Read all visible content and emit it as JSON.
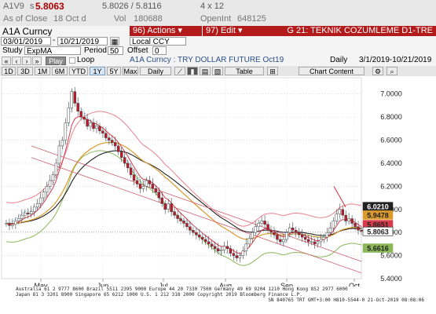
{
  "header": {
    "ticker": "A1V9",
    "price_prefix": "s",
    "price": "5.8063",
    "bid_ask": "5.8026 / 5.8116",
    "size": "4 x 12",
    "as_of": "As of Close",
    "as_of_date": "18 Oct d",
    "vol_label": "Vol",
    "vol": "180688",
    "oi_label": "OpenInt",
    "oi": "648125"
  },
  "toolbar": {
    "security": "A1A Curncy",
    "actions": "Actions",
    "edit": "Edit",
    "page_title": "G 21: TEKNIK COZUMLEME D1-TRE"
  },
  "controls": {
    "start_date": "03/01/2019",
    "end_date": "10/21/2019",
    "currency": "Local CCY",
    "study_label": "Study",
    "study_value": "ExpMA",
    "period_label": "Period",
    "period_value": "50",
    "offset_label": "Offset",
    "offset_value": "0",
    "play": "Play",
    "loop": "Loop",
    "chart_title": "A1A Curncy : TRY DOLLAR FUTURE Oct19",
    "frequency": "Daily",
    "range": "3/1/2019-10/21/2019",
    "ranges": [
      "1D",
      "3D",
      "1M",
      "6M",
      "YTD",
      "1Y",
      "5Y",
      "Max"
    ],
    "selected_range": "1Y",
    "daily_select": "Daily",
    "table_btn": "Table",
    "chart_content": "Chart Content"
  },
  "footer": {
    "line1": "Australia 61 2 9777 8600  Brazil 5511 2395 9000  Europe 44 20 7330 7500  Germany 49 69 9204 1210  Hong Kong 852 2977 6000",
    "line2": "Japan 81 3 3201 8900          Singapore 65 6212 1000          U.S. 1 212 318 2000          Copyright 2019 Bloomberg Finance L.P.",
    "line3": "SN 840765 TRT  GMT+3:00 H810-5544-0 21-Oct-2019 08:08:06"
  },
  "colors": {
    "candle_up": "#ffffff",
    "candle_down": "#c0182b",
    "ema_red": "#d63b4a",
    "black_ma": "#222222",
    "orange_ma": "#d99a2b",
    "green_band": "#8cb85a",
    "pink_band": "#e8828c",
    "dotted": "#6ab3e0"
  },
  "chart_data": {
    "type": "candlestick",
    "xlabel": "2019",
    "x_ticks": [
      "May",
      "Jun",
      "Jul",
      "Aug",
      "Sep",
      "Oct"
    ],
    "ylim": [
      5.4,
      7.1
    ],
    "y_ticks": [
      "7.0000",
      "6.8000",
      "6.6000",
      "6.4000",
      "6.2000",
      "6.0000",
      "5.8000",
      "5.6000",
      "5.4000"
    ],
    "right_labels": [
      {
        "value": "6.0210",
        "color": "#222222"
      },
      {
        "value": "5.9478",
        "color": "#d99a2b"
      },
      {
        "value": "5.8651",
        "color": "#d63b4a"
      },
      {
        "value": "5.8063",
        "color": "#ffffff"
      },
      {
        "value": "5.6616",
        "color": "#8cb85a"
      }
    ],
    "closes": [
      5.88,
      5.86,
      5.87,
      5.9,
      5.92,
      5.95,
      5.97,
      5.96,
      5.98,
      6.02,
      6.05,
      6.1,
      6.15,
      6.2,
      6.25,
      6.3,
      6.4,
      6.55,
      6.6,
      6.75,
      6.88,
      7.02,
      6.92,
      6.85,
      6.8,
      6.78,
      6.72,
      6.75,
      6.7,
      6.72,
      6.68,
      6.66,
      6.62,
      6.6,
      6.58,
      6.55,
      6.5,
      6.45,
      6.4,
      6.36,
      6.3,
      6.25,
      6.22,
      6.18,
      6.2,
      6.25,
      6.22,
      6.18,
      6.15,
      6.1,
      6.05,
      6.0,
      6.05,
      5.98,
      5.95,
      5.92,
      5.9,
      5.88,
      5.85,
      5.82,
      5.8,
      5.78,
      5.76,
      5.74,
      5.72,
      5.7,
      5.68,
      5.66,
      5.64,
      5.65,
      5.68,
      5.66,
      5.62,
      5.6,
      5.58,
      5.6,
      5.64,
      5.7,
      5.75,
      5.8,
      5.85,
      5.88,
      5.9,
      5.87,
      5.82,
      5.8,
      5.78,
      5.74,
      5.72,
      5.74,
      5.8,
      5.84,
      5.82,
      5.8,
      5.78,
      5.76,
      5.74,
      5.72,
      5.72,
      5.7,
      5.72,
      5.74,
      5.76,
      5.8,
      5.84,
      5.9,
      5.96,
      6.0,
      5.95,
      5.9,
      5.92,
      5.88,
      5.85,
      5.82,
      5.81
    ]
  }
}
